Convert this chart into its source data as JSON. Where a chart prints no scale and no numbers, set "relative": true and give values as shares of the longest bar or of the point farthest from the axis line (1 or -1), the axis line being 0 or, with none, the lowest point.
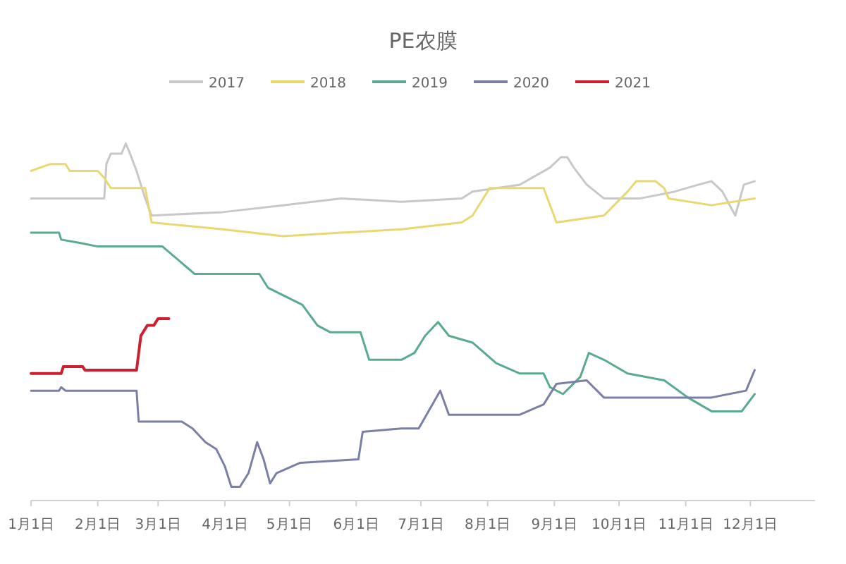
{
  "chart_data": {
    "type": "line",
    "title": "PE农膜",
    "relative": true,
    "legend": "top",
    "xlim": [
      "--01-01",
      "--12-31"
    ],
    "xticks": [
      {
        "value": "--01-01",
        "label": "1月1日"
      },
      {
        "value": "--02-01",
        "label": "2月1日"
      },
      {
        "value": "--03-01",
        "label": "3月1日"
      },
      {
        "value": "--04-01",
        "label": "4月1日"
      },
      {
        "value": "--05-01",
        "label": "5月1日"
      },
      {
        "value": "--06-01",
        "label": "6月1日"
      },
      {
        "value": "--07-01",
        "label": "7月1日"
      },
      {
        "value": "--08-01",
        "label": "8月1日"
      },
      {
        "value": "--09-01",
        "label": "9月1日"
      },
      {
        "value": "--10-01",
        "label": "10月1日"
      },
      {
        "value": "--11-01",
        "label": "11月1日"
      },
      {
        "value": "--12-01",
        "label": "12月1日"
      }
    ],
    "series": [
      {
        "name": "2017",
        "color": "#c8c8c8",
        "x": [
          "--01-01",
          "--02-04",
          "--02-05",
          "--02-07",
          "--02-12",
          "--02-14",
          "--02-16",
          "--02-19",
          "--02-23",
          "--02-26",
          "--03-31",
          "--04-28",
          "--05-25",
          "--06-22",
          "--07-20",
          "--07-25",
          "--08-16",
          "--08-30",
          "--09-04",
          "--09-07",
          "--09-10",
          "--09-16",
          "--09-24",
          "--10-11",
          "--10-27",
          "--11-07",
          "--11-13",
          "--11-18",
          "--11-24",
          "--11-28",
          "--12-03"
        ],
        "values": [
          0.84,
          0.84,
          0.94,
          0.97,
          0.97,
          1.0,
          0.97,
          0.92,
          0.84,
          0.79,
          0.8,
          0.82,
          0.84,
          0.83,
          0.84,
          0.86,
          0.88,
          0.93,
          0.96,
          0.96,
          0.93,
          0.88,
          0.84,
          0.84,
          0.86,
          0.88,
          0.89,
          0.86,
          0.79,
          0.88,
          0.89
        ]
      },
      {
        "name": "2018",
        "color": "#e8d870",
        "x": [
          "--01-01",
          "--01-10",
          "--01-17",
          "--01-19",
          "--02-01",
          "--02-04",
          "--02-07",
          "--02-23",
          "--02-26",
          "--03-31",
          "--04-28",
          "--05-25",
          "--06-22",
          "--07-20",
          "--07-25",
          "--08-02",
          "--08-27",
          "--09-02",
          "--09-24",
          "--10-05",
          "--10-09",
          "--10-18",
          "--10-22",
          "--10-24",
          "--11-13",
          "--12-03"
        ],
        "values": [
          0.92,
          0.94,
          0.94,
          0.92,
          0.92,
          0.9,
          0.87,
          0.87,
          0.77,
          0.75,
          0.73,
          0.74,
          0.75,
          0.77,
          0.79,
          0.87,
          0.87,
          0.77,
          0.79,
          0.86,
          0.89,
          0.89,
          0.87,
          0.84,
          0.82,
          0.84
        ]
      },
      {
        "name": "2019",
        "color": "#5aaa8c",
        "x": [
          "--01-01",
          "--01-14",
          "--01-15",
          "--01-24",
          "--02-01",
          "--03-03",
          "--03-18",
          "--04-17",
          "--04-21",
          "--05-07",
          "--05-14",
          "--05-20",
          "--06-03",
          "--06-07",
          "--06-22",
          "--06-28",
          "--07-03",
          "--07-09",
          "--07-14",
          "--07-25",
          "--08-05",
          "--08-16",
          "--08-27",
          "--08-30",
          "--09-05",
          "--09-13",
          "--09-17",
          "--09-24",
          "--10-05",
          "--10-22",
          "--11-02",
          "--11-13",
          "--11-27",
          "--12-03"
        ],
        "values": [
          0.74,
          0.74,
          0.72,
          0.71,
          0.7,
          0.7,
          0.62,
          0.62,
          0.58,
          0.53,
          0.47,
          0.45,
          0.45,
          0.37,
          0.37,
          0.39,
          0.44,
          0.48,
          0.44,
          0.42,
          0.36,
          0.33,
          0.33,
          0.29,
          0.27,
          0.32,
          0.39,
          0.37,
          0.33,
          0.31,
          0.26,
          0.22,
          0.22,
          0.27
        ]
      },
      {
        "name": "2020",
        "color": "#7a7fa6",
        "x": [
          "--01-01",
          "--01-14",
          "--01-15",
          "--01-17",
          "--02-19",
          "--02-20",
          "--03-12",
          "--03-17",
          "--03-23",
          "--03-28",
          "--04-01",
          "--04-04",
          "--04-08",
          "--04-12",
          "--04-16",
          "--04-19",
          "--04-22",
          "--04-25",
          "--05-06",
          "--06-02",
          "--06-04",
          "--06-22",
          "--06-30",
          "--07-10",
          "--07-14",
          "--08-16",
          "--08-27",
          "--09-02",
          "--09-16",
          "--09-24",
          "--11-13",
          "--11-29",
          "--12-03"
        ],
        "values": [
          0.28,
          0.28,
          0.29,
          0.28,
          0.28,
          0.19,
          0.19,
          0.17,
          0.13,
          0.11,
          0.06,
          0,
          0,
          0.04,
          0.13,
          0.08,
          0.01,
          0.04,
          0.07,
          0.08,
          0.16,
          0.17,
          0.17,
          0.28,
          0.21,
          0.21,
          0.24,
          0.3,
          0.31,
          0.26,
          0.26,
          0.28,
          0.34
        ]
      },
      {
        "name": "2021",
        "color": "#cc2030",
        "x": [
          "--01-01",
          "--01-15",
          "--01-16",
          "--01-25",
          "--01-26",
          "--02-19",
          "--02-21",
          "--02-24",
          "--02-27",
          "--03-01",
          "--03-06"
        ],
        "values": [
          0.33,
          0.33,
          0.35,
          0.35,
          0.34,
          0.34,
          0.44,
          0.47,
          0.47,
          0.49,
          0.49
        ]
      }
    ]
  }
}
